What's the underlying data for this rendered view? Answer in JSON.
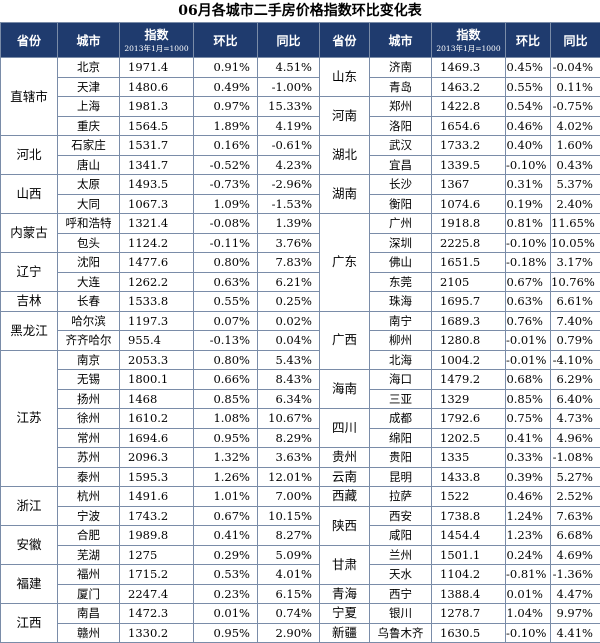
{
  "title": "06月各城市二手房价格指数环比变化表",
  "headers": {
    "province": "省份",
    "city": "城市",
    "index": "指数",
    "index_note": "2013年1月=1000",
    "mom": "环比",
    "yoy": "同比"
  },
  "left": {
    "rows": [
      {
        "city": "北京",
        "index": "1971.4",
        "mom": "0.91%",
        "yoy": "4.51%"
      },
      {
        "city": "天津",
        "index": "1480.6",
        "mom": "0.49%",
        "yoy": "-1.00%"
      },
      {
        "city": "上海",
        "index": "1981.3",
        "mom": "0.97%",
        "yoy": "15.33%"
      },
      {
        "city": "重庆",
        "index": "1564.5",
        "mom": "1.89%",
        "yoy": "4.19%"
      },
      {
        "city": "石家庄",
        "index": "1531.7",
        "mom": "0.16%",
        "yoy": "-0.61%"
      },
      {
        "city": "唐山",
        "index": "1341.7",
        "mom": "-0.52%",
        "yoy": "4.23%"
      },
      {
        "city": "太原",
        "index": "1493.5",
        "mom": "-0.73%",
        "yoy": "-2.96%"
      },
      {
        "city": "大同",
        "index": "1067.3",
        "mom": "1.09%",
        "yoy": "-1.53%"
      },
      {
        "city": "呼和浩特",
        "index": "1321.4",
        "mom": "-0.08%",
        "yoy": "1.39%"
      },
      {
        "city": "包头",
        "index": "1124.2",
        "mom": "-0.11%",
        "yoy": "3.76%"
      },
      {
        "city": "沈阳",
        "index": "1477.6",
        "mom": "0.80%",
        "yoy": "7.83%"
      },
      {
        "city": "大连",
        "index": "1262.2",
        "mom": "0.63%",
        "yoy": "6.21%"
      },
      {
        "city": "长春",
        "index": "1533.8",
        "mom": "0.55%",
        "yoy": "0.25%"
      },
      {
        "city": "哈尔滨",
        "index": "1197.3",
        "mom": "0.07%",
        "yoy": "0.02%"
      },
      {
        "city": "齐齐哈尔",
        "index": "955.4",
        "mom": "-0.13%",
        "yoy": "0.04%"
      },
      {
        "city": "南京",
        "index": "2053.3",
        "mom": "0.80%",
        "yoy": "5.43%"
      },
      {
        "city": "无锡",
        "index": "1800.1",
        "mom": "0.66%",
        "yoy": "8.43%"
      },
      {
        "city": "扬州",
        "index": "1468",
        "mom": "0.85%",
        "yoy": "6.34%"
      },
      {
        "city": "徐州",
        "index": "1610.2",
        "mom": "1.08%",
        "yoy": "10.67%"
      },
      {
        "city": "常州",
        "index": "1694.6",
        "mom": "0.95%",
        "yoy": "8.29%"
      },
      {
        "city": "苏州",
        "index": "2096.3",
        "mom": "1.32%",
        "yoy": "3.63%"
      },
      {
        "city": "泰州",
        "index": "1595.3",
        "mom": "1.26%",
        "yoy": "12.01%"
      },
      {
        "city": "杭州",
        "index": "1491.6",
        "mom": "1.01%",
        "yoy": "7.00%"
      },
      {
        "city": "宁波",
        "index": "1743.2",
        "mom": "0.67%",
        "yoy": "10.15%"
      },
      {
        "city": "合肥",
        "index": "1989.8",
        "mom": "0.41%",
        "yoy": "8.27%"
      },
      {
        "city": "芜湖",
        "index": "1275",
        "mom": "0.29%",
        "yoy": "5.09%"
      },
      {
        "city": "福州",
        "index": "1715.2",
        "mom": "0.53%",
        "yoy": "4.01%"
      },
      {
        "city": "厦门",
        "index": "2247.4",
        "mom": "0.23%",
        "yoy": "6.15%"
      },
      {
        "city": "南昌",
        "index": "1472.3",
        "mom": "0.01%",
        "yoy": "0.74%"
      },
      {
        "city": "赣州",
        "index": "1330.2",
        "mom": "0.95%",
        "yoy": "2.90%"
      }
    ],
    "groups": [
      {
        "name": "直辖市",
        "start": 0,
        "span": 4
      },
      {
        "name": "河北",
        "start": 4,
        "span": 2
      },
      {
        "name": "山西",
        "start": 6,
        "span": 2
      },
      {
        "name": "内蒙古",
        "start": 8,
        "span": 2
      },
      {
        "name": "辽宁",
        "start": 10,
        "span": 2
      },
      {
        "name": "吉林",
        "start": 12,
        "span": 1
      },
      {
        "name": "黑龙江",
        "start": 13,
        "span": 2
      },
      {
        "name": "江苏",
        "start": 15,
        "span": 7
      },
      {
        "name": "浙江",
        "start": 22,
        "span": 2
      },
      {
        "name": "安徽",
        "start": 24,
        "span": 2
      },
      {
        "name": "福建",
        "start": 26,
        "span": 2
      },
      {
        "name": "江西",
        "start": 28,
        "span": 2
      }
    ]
  },
  "right": {
    "rows": [
      {
        "city": "济南",
        "index": "1469.3",
        "mom": "0.45%",
        "yoy": "-0.04%"
      },
      {
        "city": "青岛",
        "index": "1463.2",
        "mom": "0.55%",
        "yoy": "0.11%"
      },
      {
        "city": "郑州",
        "index": "1422.8",
        "mom": "0.54%",
        "yoy": "-0.75%"
      },
      {
        "city": "洛阳",
        "index": "1654.6",
        "mom": "0.46%",
        "yoy": "4.02%"
      },
      {
        "city": "武汉",
        "index": "1733.2",
        "mom": "0.40%",
        "yoy": "1.60%"
      },
      {
        "city": "宜昌",
        "index": "1339.5",
        "mom": "-0.10%",
        "yoy": "0.43%"
      },
      {
        "city": "长沙",
        "index": "1367",
        "mom": "0.31%",
        "yoy": "5.37%"
      },
      {
        "city": "衡阳",
        "index": "1074.6",
        "mom": "0.19%",
        "yoy": "2.40%"
      },
      {
        "city": "广州",
        "index": "1918.8",
        "mom": "0.81%",
        "yoy": "11.65%"
      },
      {
        "city": "深圳",
        "index": "2225.8",
        "mom": "-0.10%",
        "yoy": "10.05%"
      },
      {
        "city": "佛山",
        "index": "1651.5",
        "mom": "-0.18%",
        "yoy": "3.17%"
      },
      {
        "city": "东莞",
        "index": "2105",
        "mom": "0.67%",
        "yoy": "10.76%"
      },
      {
        "city": "珠海",
        "index": "1695.7",
        "mom": "0.63%",
        "yoy": "6.61%"
      },
      {
        "city": "南宁",
        "index": "1689.3",
        "mom": "0.76%",
        "yoy": "7.40%"
      },
      {
        "city": "柳州",
        "index": "1280.8",
        "mom": "-0.01%",
        "yoy": "0.79%"
      },
      {
        "city": "北海",
        "index": "1004.2",
        "mom": "-0.01%",
        "yoy": "-4.10%"
      },
      {
        "city": "海口",
        "index": "1479.2",
        "mom": "0.68%",
        "yoy": "6.29%"
      },
      {
        "city": "三亚",
        "index": "1329",
        "mom": "0.85%",
        "yoy": "6.40%"
      },
      {
        "city": "成都",
        "index": "1792.6",
        "mom": "0.75%",
        "yoy": "4.73%"
      },
      {
        "city": "绵阳",
        "index": "1202.5",
        "mom": "0.41%",
        "yoy": "4.96%"
      },
      {
        "city": "贵阳",
        "index": "1335",
        "mom": "0.33%",
        "yoy": "-1.08%"
      },
      {
        "city": "昆明",
        "index": "1433.8",
        "mom": "0.39%",
        "yoy": "5.27%"
      },
      {
        "city": "拉萨",
        "index": "1522",
        "mom": "0.46%",
        "yoy": "2.52%"
      },
      {
        "city": "西安",
        "index": "1738.8",
        "mom": "1.24%",
        "yoy": "7.63%"
      },
      {
        "city": "咸阳",
        "index": "1454.4",
        "mom": "1.23%",
        "yoy": "6.68%"
      },
      {
        "city": "兰州",
        "index": "1501.1",
        "mom": "0.24%",
        "yoy": "4.69%"
      },
      {
        "city": "天水",
        "index": "1104.2",
        "mom": "-0.81%",
        "yoy": "-1.36%"
      },
      {
        "city": "西宁",
        "index": "1388.4",
        "mom": "0.01%",
        "yoy": "4.47%"
      },
      {
        "city": "银川",
        "index": "1278.7",
        "mom": "1.04%",
        "yoy": "9.97%"
      },
      {
        "city": "乌鲁木齐",
        "index": "1630.5",
        "mom": "-0.10%",
        "yoy": "4.41%"
      }
    ],
    "groups": [
      {
        "name": "山东",
        "start": 0,
        "span": 2
      },
      {
        "name": "河南",
        "start": 2,
        "span": 2
      },
      {
        "name": "湖北",
        "start": 4,
        "span": 2
      },
      {
        "name": "湖南",
        "start": 6,
        "span": 2
      },
      {
        "name": "广东",
        "start": 8,
        "span": 5
      },
      {
        "name": "广西",
        "start": 13,
        "span": 3
      },
      {
        "name": "海南",
        "start": 16,
        "span": 2
      },
      {
        "name": "四川",
        "start": 18,
        "span": 2
      },
      {
        "name": "贵州",
        "start": 20,
        "span": 1
      },
      {
        "name": "云南",
        "start": 21,
        "span": 1
      },
      {
        "name": "西藏",
        "start": 22,
        "span": 1
      },
      {
        "name": "陕西",
        "start": 23,
        "span": 2
      },
      {
        "name": "甘肃",
        "start": 25,
        "span": 2
      },
      {
        "name": "青海",
        "start": 27,
        "span": 1
      },
      {
        "name": "宁夏",
        "start": 28,
        "span": 1
      },
      {
        "name": "新疆",
        "start": 29,
        "span": 1
      }
    ]
  }
}
